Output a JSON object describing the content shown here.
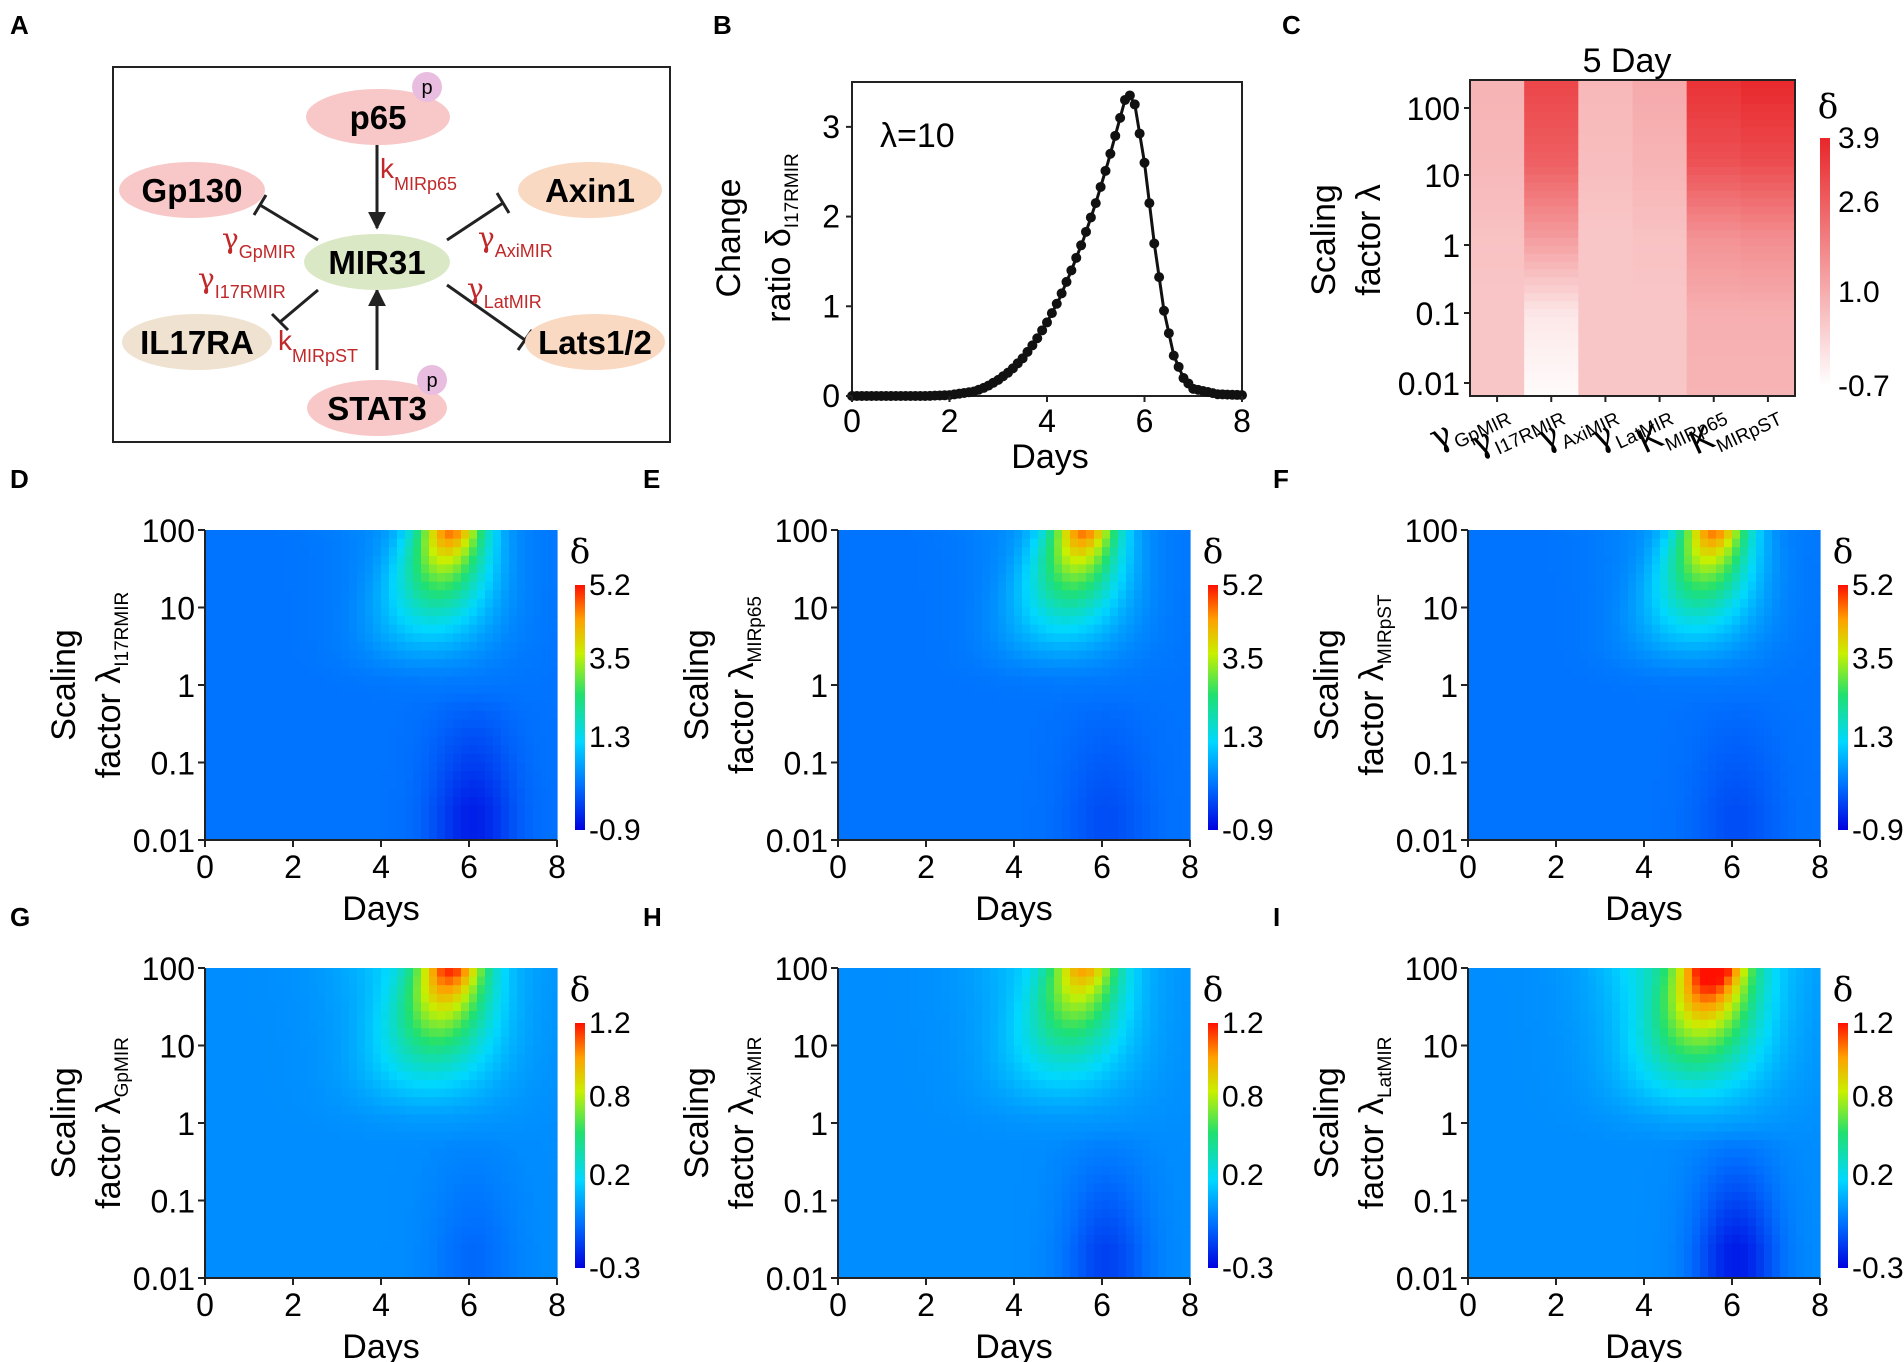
{
  "panels": {
    "A": {
      "label": "A",
      "nodes": {
        "p65": "p65",
        "gp130": "Gp130",
        "axin1": "Axin1",
        "mir31": "MIR31",
        "il17ra": "IL17RA",
        "lats": "Lats1/2",
        "stat3": "STAT3",
        "phospho": "p"
      },
      "edges": {
        "k_p65": {
          "sym": "k",
          "sub": "MIRp65"
        },
        "g_gp": {
          "sym": "γ",
          "sub": "GpMIR"
        },
        "g_i17": {
          "sym": "γ",
          "sub": "I17RMIR"
        },
        "g_axi": {
          "sym": "γ",
          "sub": "AxiMIR"
        },
        "g_lat": {
          "sym": "γ",
          "sub": "LatMIR"
        },
        "k_st": {
          "sym": "k",
          "sub": "MIRpST"
        }
      }
    },
    "B": {
      "label": "B",
      "ylabel_line1": "Change",
      "ylabel_line2_a": "ratio δ",
      "ylabel_sub": "I17RMIR",
      "xlabel": "Days",
      "annotation": "λ=10"
    },
    "C": {
      "label": "C",
      "title": "5 Day",
      "ylabel_line1": "Scaling",
      "ylabel_line2": "factor λ",
      "cb_symbol": "δ",
      "xticks": [
        {
          "sym": "γ",
          "sub": "GpMIR"
        },
        {
          "sym": "γ",
          "sub": "I17RMIR"
        },
        {
          "sym": "γ",
          "sub": "AxiMIR"
        },
        {
          "sym": "γ",
          "sub": "LatMIR"
        },
        {
          "sym": "K",
          "sub": "MIRp65"
        },
        {
          "sym": "K",
          "sub": "MIRpST"
        }
      ]
    },
    "D": {
      "label": "D",
      "ylabel_line1": "Scaling",
      "ylabel_line2": "factor λ",
      "ylabel_sub": "I17RMIR",
      "xlabel": "Days",
      "cb_symbol": "δ"
    },
    "E": {
      "label": "E",
      "ylabel_line1": "Scaling",
      "ylabel_line2": "factor λ",
      "ylabel_sub": "MIRp65",
      "xlabel": "Days",
      "cb_symbol": "δ"
    },
    "F": {
      "label": "F",
      "ylabel_line1": "Scaling",
      "ylabel_line2": "factor λ",
      "ylabel_sub": "MIRpST",
      "xlabel": "Days",
      "cb_symbol": "δ"
    },
    "G": {
      "label": "G",
      "ylabel_line1": "Scaling",
      "ylabel_line2": "factor λ",
      "ylabel_sub": "GpMIR",
      "xlabel": "Days",
      "cb_symbol": "δ"
    },
    "H": {
      "label": "H",
      "ylabel_line1": "Scaling",
      "ylabel_line2": "factor λ",
      "ylabel_sub": "AxiMIR",
      "xlabel": "Days",
      "cb_symbol": "δ"
    },
    "I": {
      "label": "I",
      "ylabel_line1": "Scaling",
      "ylabel_line2": "factor λ",
      "ylabel_sub": "LatMIR",
      "xlabel": "Days",
      "cb_symbol": "δ"
    }
  },
  "chart_data": [
    {
      "panel": "B",
      "type": "line",
      "x": [
        0,
        0.5,
        1,
        1.5,
        2,
        2.5,
        2.75,
        3,
        3.25,
        3.5,
        3.75,
        4,
        4.25,
        4.5,
        4.75,
        5,
        5.25,
        5.5,
        5.6,
        5.7,
        5.8,
        6,
        6.2,
        6.4,
        6.6,
        6.8,
        7,
        7.5,
        8
      ],
      "y": [
        0,
        0,
        0,
        0,
        0.01,
        0.05,
        0.1,
        0.18,
        0.28,
        0.42,
        0.6,
        0.82,
        1.08,
        1.4,
        1.75,
        2.15,
        2.6,
        3.1,
        3.3,
        3.35,
        3.25,
        2.6,
        1.7,
        0.95,
        0.45,
        0.2,
        0.08,
        0.02,
        0.01
      ],
      "xlim": [
        0,
        8
      ],
      "ylim": [
        0,
        3.5
      ],
      "xticks": [
        "0",
        "2",
        "4",
        "6",
        "8"
      ],
      "yticks": [
        "0",
        "1",
        "2",
        "3"
      ]
    },
    {
      "panel": "C",
      "type": "heatmap",
      "columns": [
        "γGpMIR",
        "γI17RMIR",
        "γAxiMIR",
        "γLatMIR",
        "KMIRp65",
        "KMIRpST"
      ],
      "rows_lambda": [
        "100",
        "10",
        "1",
        "0.1",
        "0.01"
      ],
      "values": [
        [
          0.9,
          3.2,
          0.8,
          1.1,
          3.6,
          3.8
        ],
        [
          0.8,
          2.7,
          0.7,
          0.9,
          3.0,
          3.1
        ],
        [
          0.6,
          1.4,
          0.5,
          0.6,
          1.6,
          1.7
        ],
        [
          0.5,
          -0.2,
          0.5,
          0.5,
          1.0,
          1.0
        ],
        [
          0.5,
          -0.6,
          0.5,
          0.5,
          0.9,
          0.9
        ]
      ],
      "colorbar_ticks": [
        "3.9",
        "2.6",
        "1.0",
        "-0.7"
      ],
      "vmin": -0.7,
      "vmax": 3.9
    },
    {
      "panel": "D",
      "type": "heatmap",
      "peak": 5.2,
      "neg": -0.9,
      "tail": 0.6,
      "colorbar_ticks": [
        "5.2",
        "3.5",
        "1.3",
        "-0.9"
      ]
    },
    {
      "panel": "E",
      "type": "heatmap",
      "peak": 5.2,
      "neg": -0.4,
      "tail": 0.6,
      "colorbar_ticks": [
        "5.2",
        "3.5",
        "1.3",
        "-0.9"
      ]
    },
    {
      "panel": "F",
      "type": "heatmap",
      "peak": 5.2,
      "neg": -0.4,
      "tail": 0.55,
      "colorbar_ticks": [
        "5.2",
        "3.5",
        "1.3",
        "-0.9"
      ]
    },
    {
      "panel": "G",
      "type": "heatmap",
      "peak": 1.2,
      "neg": -0.1,
      "tail": 0.3,
      "colorbar_ticks": [
        "1.2",
        "0.8",
        "0.2",
        "-0.3"
      ]
    },
    {
      "panel": "H",
      "type": "heatmap",
      "peak": 1.0,
      "neg": -0.2,
      "tail": 0.25,
      "colorbar_ticks": [
        "1.2",
        "0.8",
        "0.2",
        "-0.3"
      ]
    },
    {
      "panel": "I",
      "type": "heatmap",
      "peak": 1.2,
      "neg": -0.3,
      "tail": 0.55,
      "colorbar_ticks": [
        "1.2",
        "0.8",
        "0.2",
        "-0.3"
      ]
    }
  ],
  "axis_ticks": {
    "days": [
      "0",
      "2",
      "4",
      "6",
      "8"
    ],
    "lambda": [
      "100",
      "10",
      "1",
      "0.1",
      "0.01"
    ]
  }
}
